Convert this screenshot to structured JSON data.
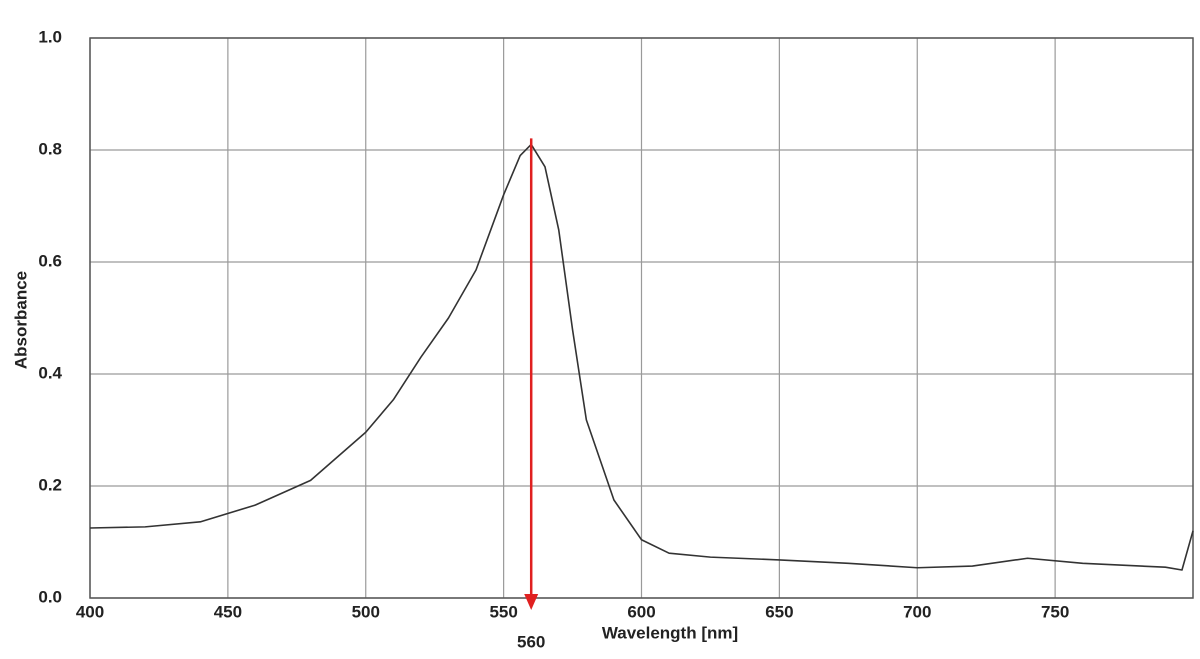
{
  "chart_data": {
    "type": "line",
    "x_label": "Wavelength [nm]",
    "y_label": "Absorbance",
    "x": [
      400,
      420,
      440,
      460,
      480,
      500,
      510,
      520,
      530,
      540,
      550,
      556,
      560,
      565,
      570,
      575,
      580,
      590,
      600,
      610,
      625,
      650,
      675,
      700,
      720,
      740,
      760,
      790,
      796,
      800
    ],
    "series": [
      {
        "color": "#333333",
        "values": [
          0.125,
          0.127,
          0.136,
          0.166,
          0.21,
          0.296,
          0.354,
          0.43,
          0.5,
          0.586,
          0.72,
          0.79,
          0.81,
          0.77,
          0.657,
          0.479,
          0.318,
          0.175,
          0.104,
          0.08,
          0.073,
          0.068,
          0.062,
          0.054,
          0.057,
          0.071,
          0.062,
          0.055,
          0.05,
          0.12
        ]
      }
    ],
    "xlim": [
      400,
      800
    ],
    "ylim": [
      0,
      1
    ],
    "xticks": [
      400,
      450,
      500,
      550,
      600,
      650,
      700,
      750
    ],
    "yticks": [
      {
        "value": 0,
        "label": "0.0"
      },
      0.2,
      0.4,
      0.6,
      0.8,
      {
        "value": 1,
        "label": "1.0"
      }
    ],
    "grid": true,
    "annotation": {
      "x": 560,
      "color": "#e02020"
    }
  }
}
